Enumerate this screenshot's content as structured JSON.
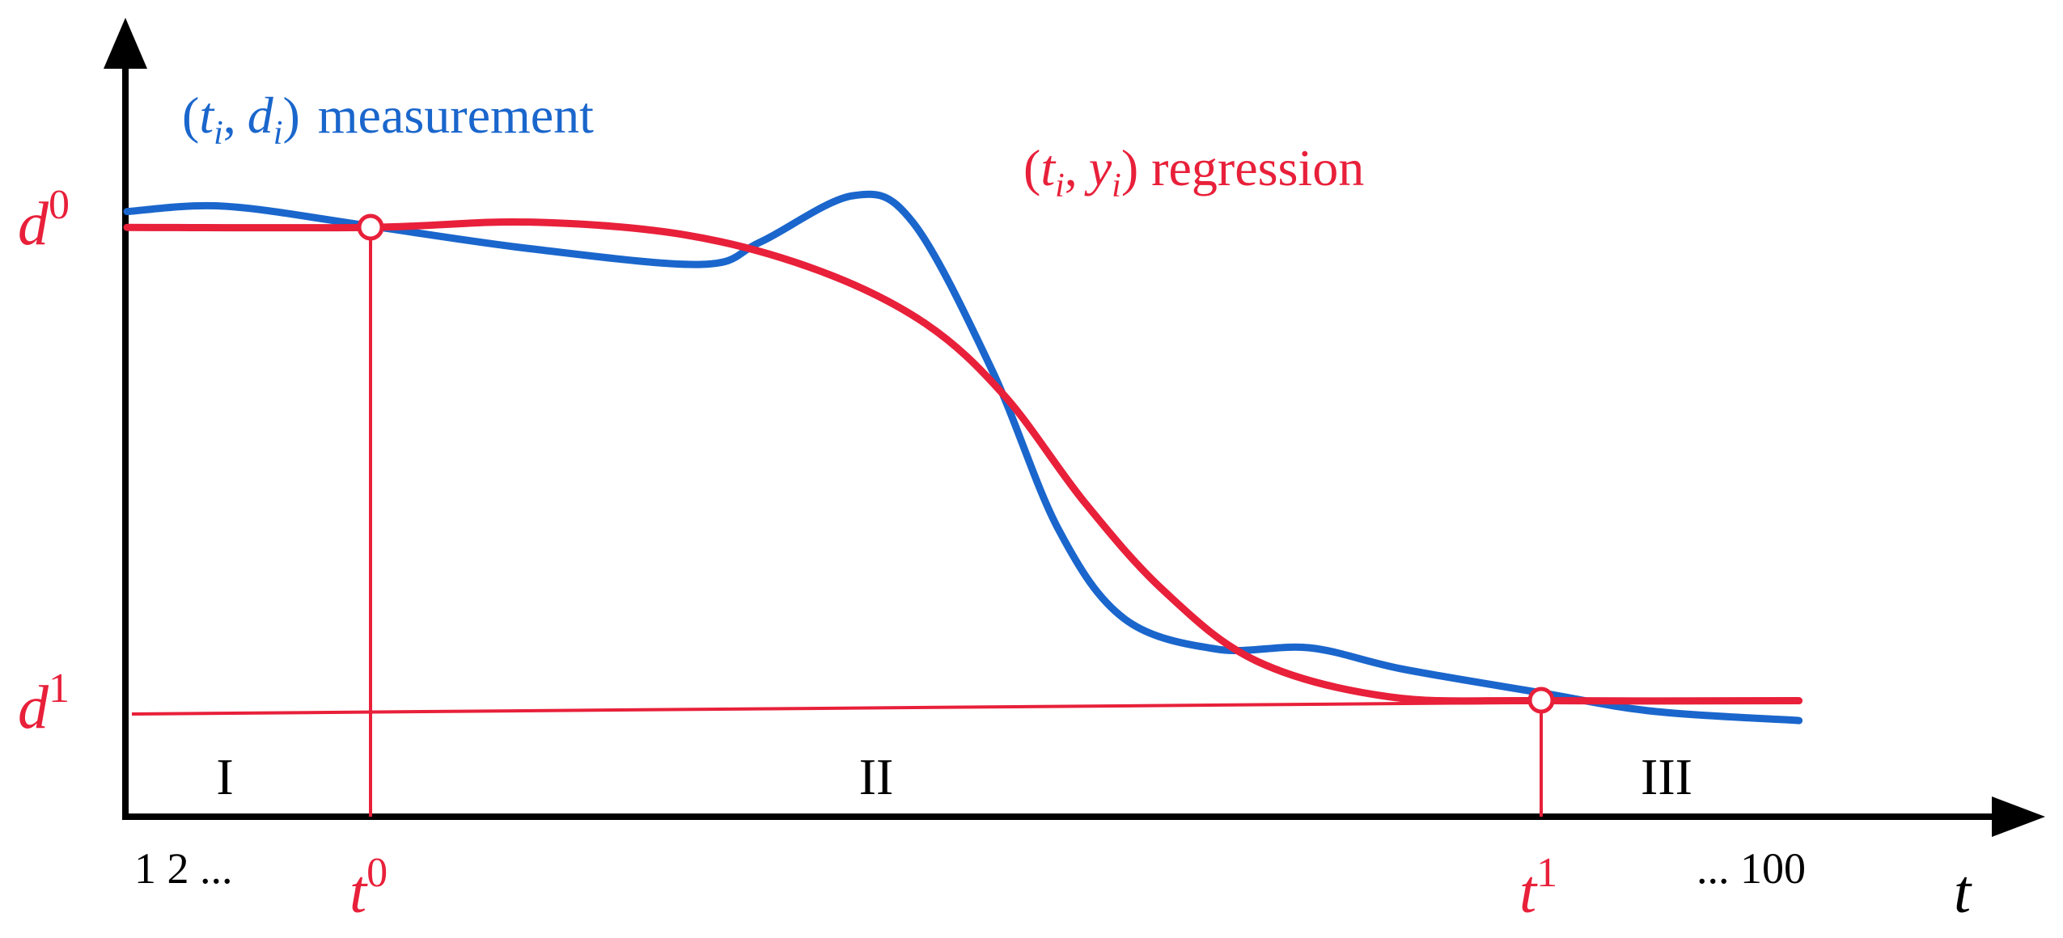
{
  "series_labels": [
    {
      "open": "(",
      "var1": "t",
      "sub1": "i",
      "sep": ",",
      "var2": "d",
      "sub2": "i",
      "close": ")",
      "label": "measurement"
    },
    {
      "open": "(",
      "var1": "t",
      "sub1": "i",
      "sep": ",",
      "var2": "y",
      "sub2": "i",
      "close": ")",
      "label": "regression"
    }
  ],
  "y_labels": [
    {
      "symbol": "d",
      "superscript": "0"
    },
    {
      "symbol": "d",
      "superscript": "1"
    }
  ],
  "x_labels": [
    {
      "symbol": "t",
      "superscript": "0"
    },
    {
      "symbol": "t",
      "superscript": "1"
    }
  ],
  "regions": [
    "I",
    "II",
    "III"
  ],
  "index_start": "1 2 ...",
  "index_end": "... 100",
  "x_axis_label": "t"
}
